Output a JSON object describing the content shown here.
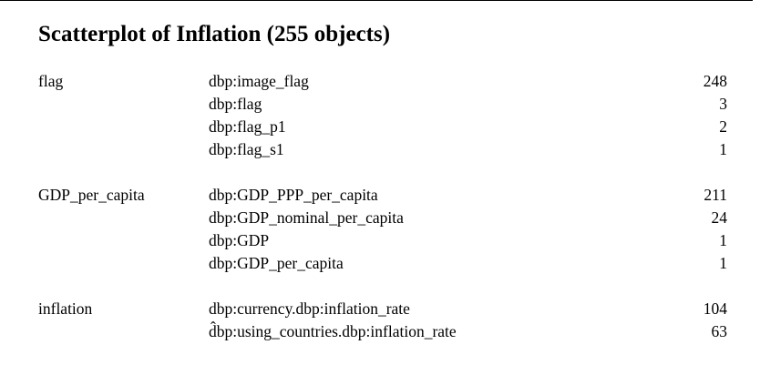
{
  "document": {
    "title": "Scatterplot of Inflation (255 objects)"
  },
  "groups": [
    {
      "name": "flag",
      "rows": [
        {
          "property": "dbp:image_flag",
          "count": "248"
        },
        {
          "property": "dbp:flag",
          "count": "3"
        },
        {
          "property": "dbp:flag_p1",
          "count": "2"
        },
        {
          "property": "dbp:flag_s1",
          "count": "1"
        }
      ]
    },
    {
      "name": "GDP_per_capita",
      "rows": [
        {
          "property": "dbp:GDP_PPP_per_capita",
          "count": "211"
        },
        {
          "property": "dbp:GDP_nominal_per_capita",
          "count": "24"
        },
        {
          "property": "dbp:GDP",
          "count": "1"
        },
        {
          "property": "dbp:GDP_per_capita",
          "count": "1"
        }
      ]
    },
    {
      "name": "inflation",
      "rows": [
        {
          "property": "dbp:currency.dbp:inflation_rate",
          "count": "104"
        },
        {
          "property": "d̂bp:using_countries.dbp:inflation_rate",
          "count": "63"
        }
      ]
    }
  ]
}
